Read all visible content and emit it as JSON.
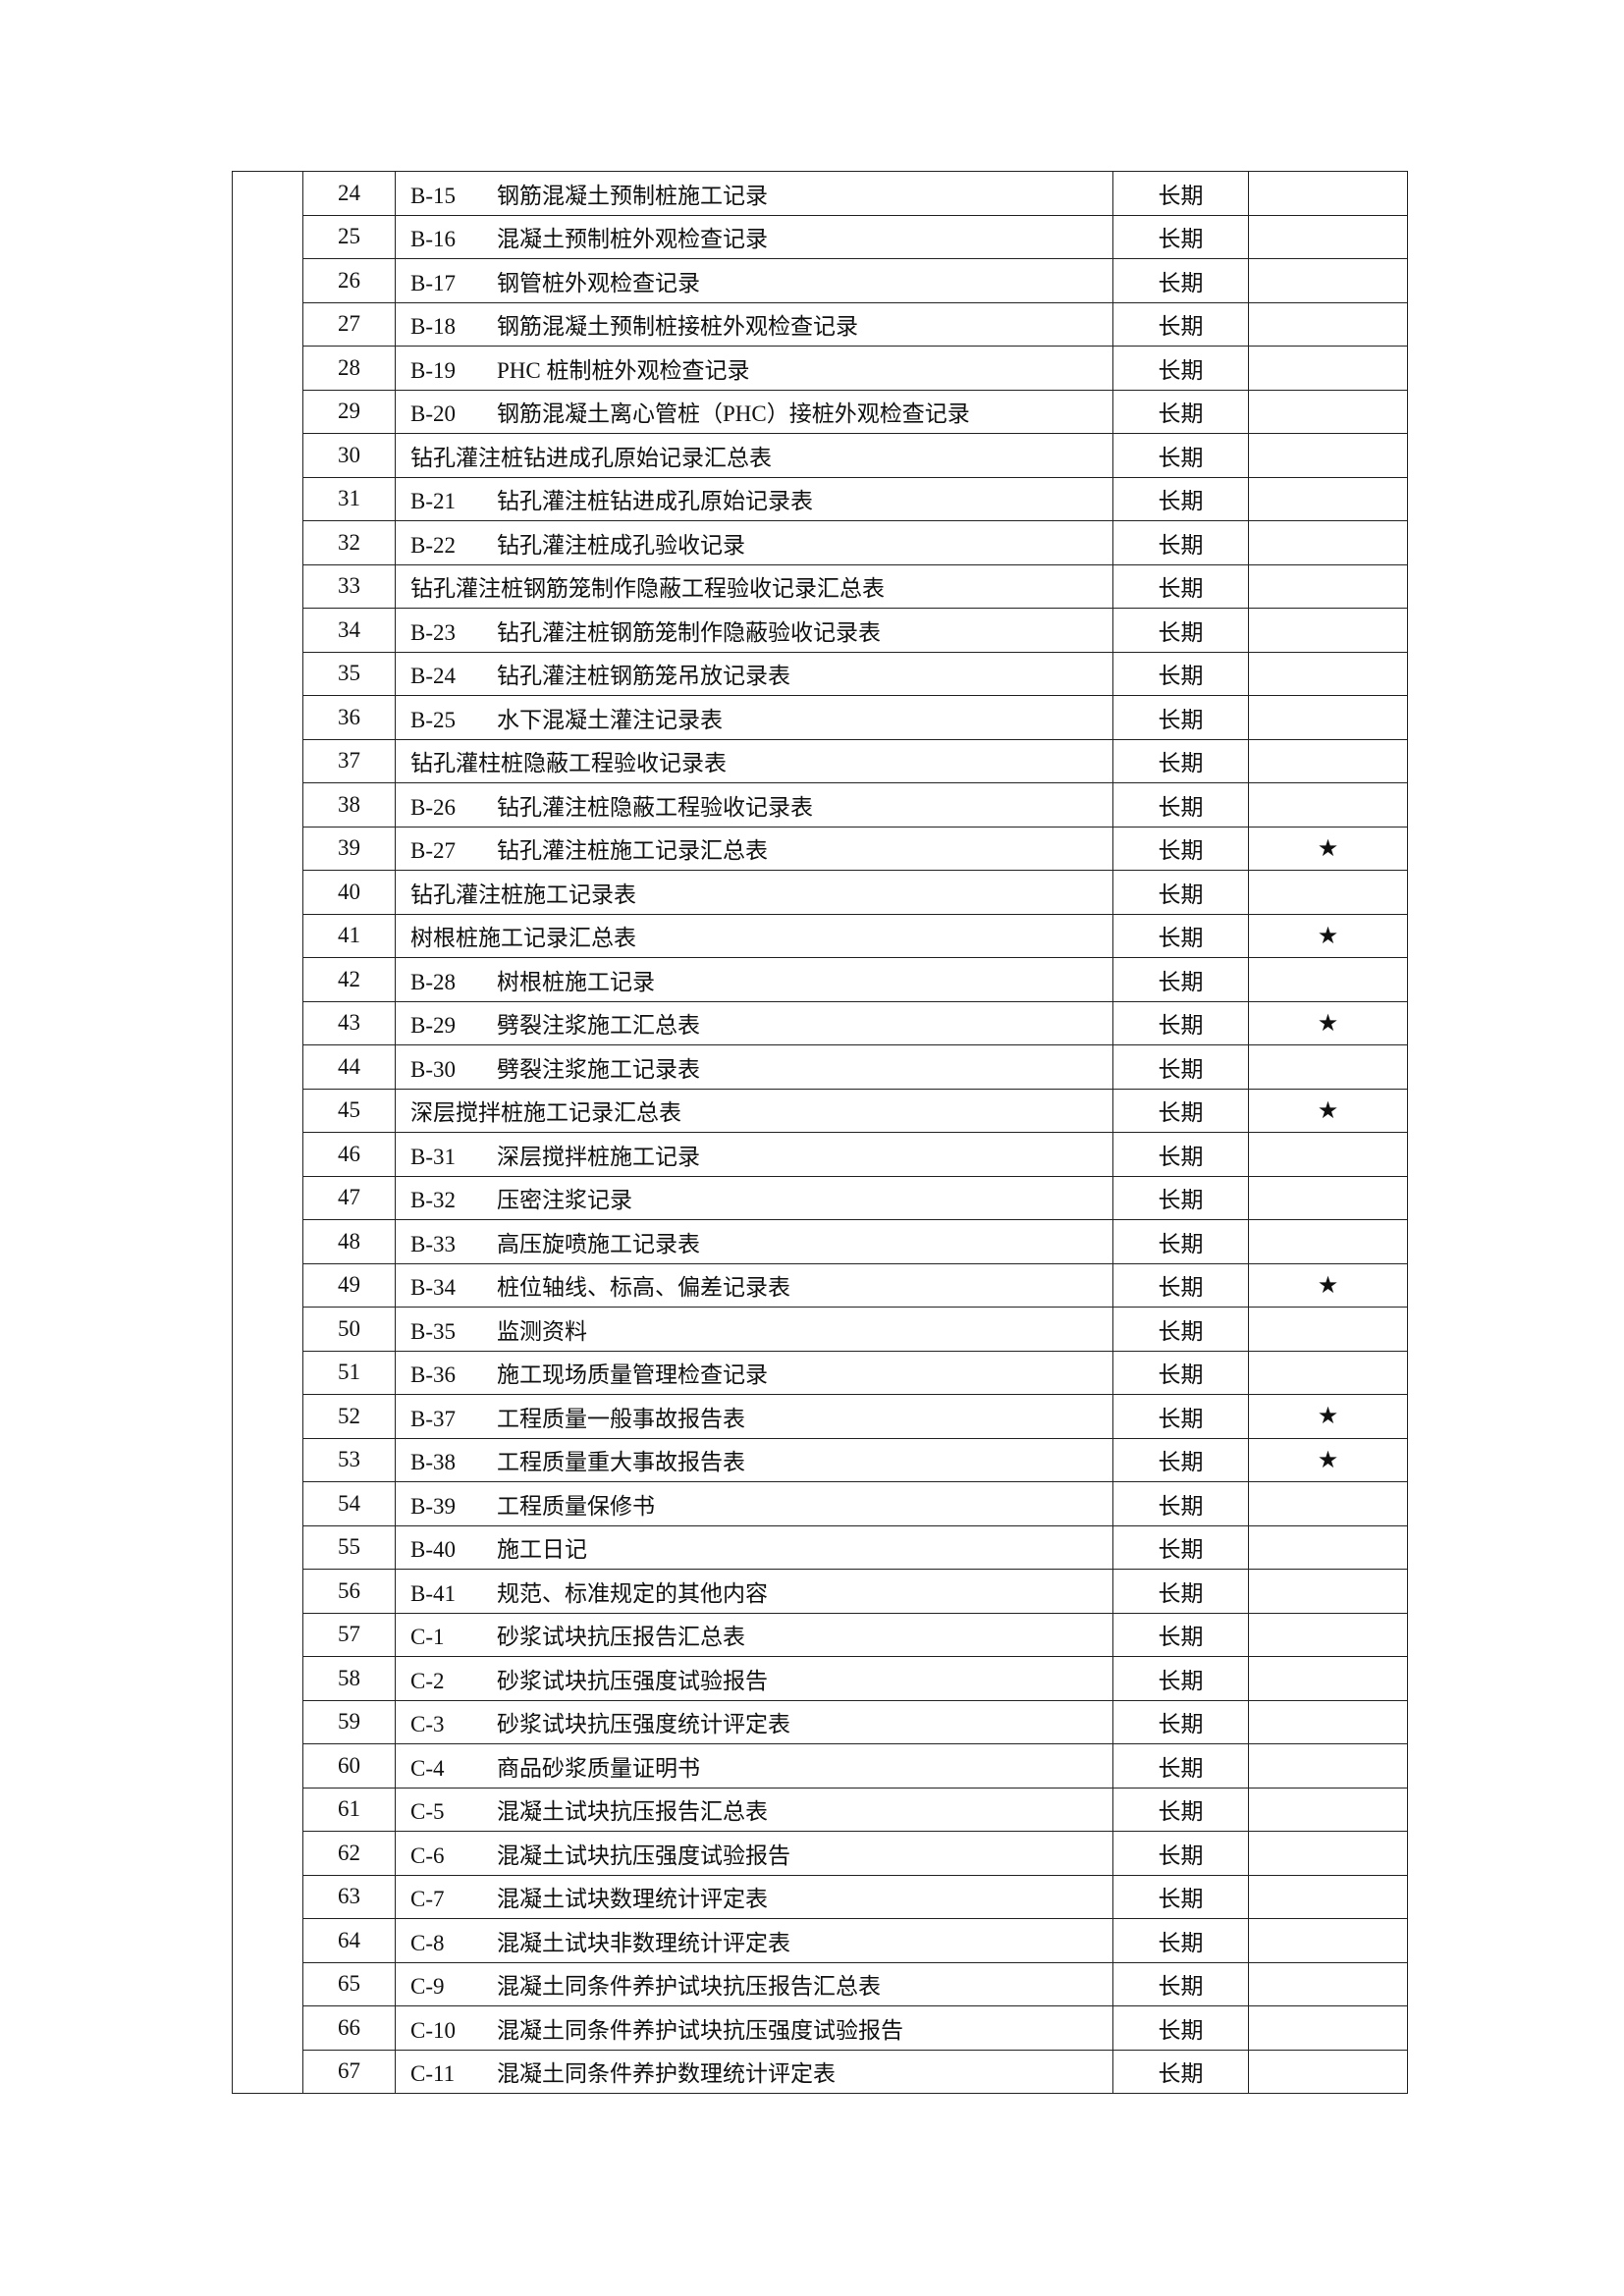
{
  "rows": [
    {
      "no": "24",
      "code": "B-15",
      "name": "钢筋混凝土预制桩施工记录",
      "period": "长期",
      "mark": ""
    },
    {
      "no": "25",
      "code": "B-16",
      "name": "混凝土预制桩外观检查记录",
      "period": "长期",
      "mark": ""
    },
    {
      "no": "26",
      "code": "B-17",
      "name": "钢管桩外观检查记录",
      "period": "长期",
      "mark": ""
    },
    {
      "no": "27",
      "code": "B-18",
      "name": "钢筋混凝土预制桩接桩外观检查记录",
      "period": "长期",
      "mark": ""
    },
    {
      "no": "28",
      "code": "B-19",
      "name": "PHC 桩制桩外观检查记录",
      "period": "长期",
      "mark": ""
    },
    {
      "no": "29",
      "code": "B-20",
      "name": "钢筋混凝土离心管桩（PHC）接桩外观检查记录",
      "period": "长期",
      "mark": ""
    },
    {
      "no": "30",
      "code": "",
      "name": "钻孔灌注桩钻进成孔原始记录汇总表",
      "period": "长期",
      "mark": ""
    },
    {
      "no": "31",
      "code": "B-21",
      "name": "钻孔灌注桩钻进成孔原始记录表",
      "period": "长期",
      "mark": ""
    },
    {
      "no": "32",
      "code": "B-22",
      "name": "钻孔灌注桩成孔验收记录",
      "period": "长期",
      "mark": ""
    },
    {
      "no": "33",
      "code": "",
      "name": "钻孔灌注桩钢筋笼制作隐蔽工程验收记录汇总表",
      "period": "长期",
      "mark": ""
    },
    {
      "no": "34",
      "code": "B-23",
      "name": "钻孔灌注桩钢筋笼制作隐蔽验收记录表",
      "period": "长期",
      "mark": ""
    },
    {
      "no": "35",
      "code": "B-24",
      "name": "钻孔灌注桩钢筋笼吊放记录表",
      "period": "长期",
      "mark": ""
    },
    {
      "no": "36",
      "code": "B-25",
      "name": "水下混凝土灌注记录表",
      "period": "长期",
      "mark": ""
    },
    {
      "no": "37",
      "code": "",
      "name": "钻孔灌柱桩隐蔽工程验收记录表",
      "period": "长期",
      "mark": ""
    },
    {
      "no": "38",
      "code": "B-26",
      "name": "钻孔灌注桩隐蔽工程验收记录表",
      "period": "长期",
      "mark": ""
    },
    {
      "no": "39",
      "code": "B-27",
      "name": "钻孔灌注桩施工记录汇总表",
      "period": "长期",
      "mark": "★"
    },
    {
      "no": "40",
      "code": "",
      "name": "钻孔灌注桩施工记录表",
      "period": "长期",
      "mark": ""
    },
    {
      "no": "41",
      "code": "",
      "name": "树根桩施工记录汇总表",
      "period": "长期",
      "mark": "★"
    },
    {
      "no": "42",
      "code": "B-28",
      "name": "树根桩施工记录",
      "period": "长期",
      "mark": ""
    },
    {
      "no": "43",
      "code": "B-29",
      "name": "劈裂注浆施工汇总表",
      "period": "长期",
      "mark": "★"
    },
    {
      "no": "44",
      "code": "B-30",
      "name": "劈裂注浆施工记录表",
      "period": "长期",
      "mark": ""
    },
    {
      "no": "45",
      "code": "",
      "name": "深层搅拌桩施工记录汇总表",
      "period": "长期",
      "mark": "★"
    },
    {
      "no": "46",
      "code": "B-31",
      "name": "深层搅拌桩施工记录",
      "period": "长期",
      "mark": ""
    },
    {
      "no": "47",
      "code": "B-32",
      "name": "压密注浆记录",
      "period": "长期",
      "mark": ""
    },
    {
      "no": "48",
      "code": "B-33",
      "name": "高压旋喷施工记录表",
      "period": "长期",
      "mark": ""
    },
    {
      "no": "49",
      "code": "B-34",
      "name": "桩位轴线、标高、偏差记录表",
      "period": "长期",
      "mark": "★"
    },
    {
      "no": "50",
      "code": "B-35",
      "name": "监测资料",
      "period": "长期",
      "mark": ""
    },
    {
      "no": "51",
      "code": "B-36",
      "name": "施工现场质量管理检查记录",
      "period": "长期",
      "mark": ""
    },
    {
      "no": "52",
      "code": "B-37",
      "name": "工程质量一般事故报告表",
      "period": "长期",
      "mark": "★"
    },
    {
      "no": "53",
      "code": "B-38",
      "name": "工程质量重大事故报告表",
      "period": "长期",
      "mark": "★"
    },
    {
      "no": "54",
      "code": "B-39",
      "name": "工程质量保修书",
      "period": "长期",
      "mark": ""
    },
    {
      "no": "55",
      "code": "B-40",
      "name": "施工日记",
      "period": "长期",
      "mark": ""
    },
    {
      "no": "56",
      "code": "B-41",
      "name": "规范、标准规定的其他内容",
      "period": "长期",
      "mark": ""
    },
    {
      "no": "57",
      "code": "C-1",
      "name": "砂浆试块抗压报告汇总表",
      "period": "长期",
      "mark": ""
    },
    {
      "no": "58",
      "code": "C-2",
      "name": "砂浆试块抗压强度试验报告",
      "period": "长期",
      "mark": ""
    },
    {
      "no": "59",
      "code": "C-3",
      "name": "砂浆试块抗压强度统计评定表",
      "period": "长期",
      "mark": ""
    },
    {
      "no": "60",
      "code": "C-4",
      "name": "商品砂浆质量证明书",
      "period": "长期",
      "mark": ""
    },
    {
      "no": "61",
      "code": "C-5",
      "name": "混凝土试块抗压报告汇总表",
      "period": "长期",
      "mark": ""
    },
    {
      "no": "62",
      "code": "C-6",
      "name": "混凝土试块抗压强度试验报告",
      "period": "长期",
      "mark": ""
    },
    {
      "no": "63",
      "code": "C-7",
      "name": "混凝土试块数理统计评定表",
      "period": "长期",
      "mark": ""
    },
    {
      "no": "64",
      "code": "C-8",
      "name": "混凝土试块非数理统计评定表",
      "period": "长期",
      "mark": ""
    },
    {
      "no": "65",
      "code": "C-9",
      "name": "混凝土同条件养护试块抗压报告汇总表",
      "period": "长期",
      "mark": ""
    },
    {
      "no": "66",
      "code": "C-10",
      "name": "混凝土同条件养护试块抗压强度试验报告",
      "period": "长期",
      "mark": ""
    },
    {
      "no": "67",
      "code": "C-11",
      "name": "混凝土同条件养护数理统计评定表",
      "period": "长期",
      "mark": ""
    }
  ]
}
